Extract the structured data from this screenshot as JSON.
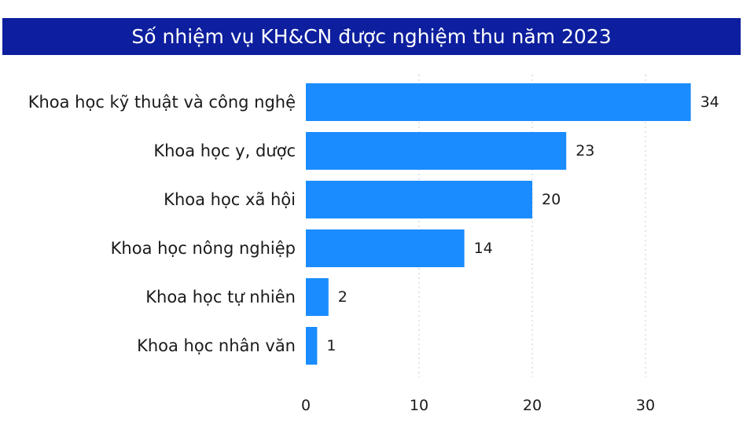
{
  "chart_data": {
    "type": "bar",
    "orientation": "horizontal",
    "title": "Số nhiệm vụ KH&CN được nghiệm thu năm 2023",
    "categories": [
      "Khoa học kỹ thuật và công nghệ",
      "Khoa học y, dược",
      "Khoa học xã hội",
      "Khoa học nông nghiệp",
      "Khoa học tự nhiên",
      "Khoa học nhân văn"
    ],
    "values": [
      34,
      23,
      20,
      14,
      2,
      1
    ],
    "xticks": [
      0,
      10,
      20,
      30
    ],
    "xlim": [
      0,
      36
    ],
    "grid": true,
    "bar_color": "#1a8cff",
    "title_bg": "#0d1f9e"
  }
}
